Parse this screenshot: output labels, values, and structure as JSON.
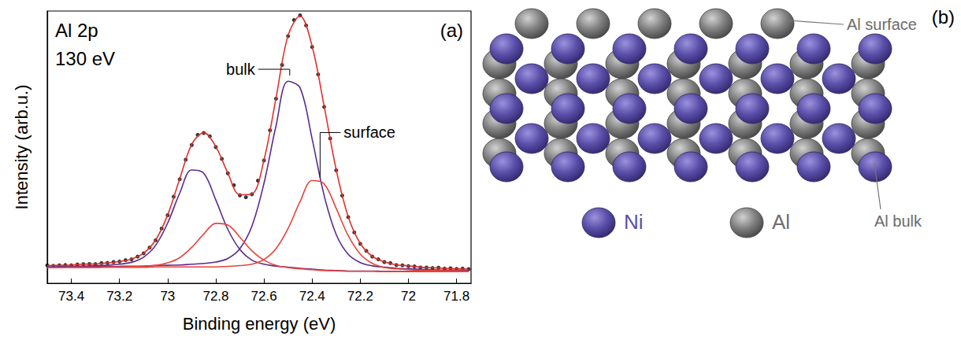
{
  "chart_data": {
    "type": "line",
    "title": "Al 2p",
    "subtitle": "130 eV",
    "panel_label": "(a)",
    "x_label": "Binding energy (eV)",
    "y_label": "Intensity (arb.u.)",
    "xlim": [
      73.5,
      71.74
    ],
    "xticks": [
      73.4,
      73.2,
      73,
      72.8,
      72.6,
      72.4,
      72.2,
      72,
      71.8
    ],
    "ylim": [
      0,
      1
    ],
    "tick_labels": "x",
    "grid": false,
    "x": [
      73.5,
      73.45,
      73.4,
      73.35,
      73.3,
      73.25,
      73.2,
      73.15,
      73.1,
      73.05,
      73,
      72.95,
      72.9,
      72.85,
      72.8,
      72.75,
      72.7,
      72.65,
      72.6,
      72.55,
      72.5,
      72.45,
      72.4,
      72.35,
      72.3,
      72.25,
      72.2,
      72.15,
      72.1,
      72.05,
      72,
      71.95,
      71.9,
      71.85,
      71.8,
      71.75
    ],
    "series": [
      {
        "type": "line",
        "color": "#5b2a8e",
        "line_style": "solid",
        "values": [
          0.06,
          0.061,
          0.062,
          0.063,
          0.064,
          0.066,
          0.07,
          0.077,
          0.096,
          0.139,
          0.221,
          0.331,
          0.416,
          0.404,
          0.306,
          0.198,
          0.124,
          0.085,
          0.07,
          0.063,
          0.059,
          0.055,
          0.052,
          0.048,
          0.047,
          0.045,
          0.045,
          0.045,
          0.044,
          0.044,
          0.044,
          0.044,
          0.043,
          0.043,
          0.043,
          0.043
        ]
      },
      {
        "type": "line",
        "color": "#5b2a8e",
        "line_style": "solid",
        "values": [
          0.06,
          0.06,
          0.06,
          0.061,
          0.061,
          0.061,
          0.062,
          0.063,
          0.063,
          0.065,
          0.066,
          0.067,
          0.07,
          0.073,
          0.078,
          0.091,
          0.127,
          0.21,
          0.367,
          0.578,
          0.742,
          0.718,
          0.53,
          0.322,
          0.179,
          0.106,
          0.076,
          0.064,
          0.059,
          0.055,
          0.053,
          0.051,
          0.05,
          0.048,
          0.048,
          0.047
        ]
      },
      {
        "type": "line",
        "color": "#e8433a",
        "line_style": "solid",
        "values": [
          0.058,
          0.058,
          0.059,
          0.059,
          0.059,
          0.06,
          0.06,
          0.061,
          0.063,
          0.066,
          0.075,
          0.094,
          0.132,
          0.181,
          0.22,
          0.214,
          0.169,
          0.119,
          0.085,
          0.066,
          0.058,
          0.053,
          0.05,
          0.047,
          0.046,
          0.044,
          0.044,
          0.044,
          0.043,
          0.043,
          0.043,
          0.043,
          0.043,
          0.043,
          0.043,
          0.043
        ]
      },
      {
        "type": "line",
        "color": "#e8433a",
        "line_style": "solid",
        "values": [
          0.058,
          0.058,
          0.058,
          0.058,
          0.058,
          0.059,
          0.059,
          0.059,
          0.059,
          0.06,
          0.06,
          0.06,
          0.06,
          0.06,
          0.06,
          0.062,
          0.065,
          0.07,
          0.087,
          0.127,
          0.201,
          0.3,
          0.377,
          0.365,
          0.275,
          0.175,
          0.107,
          0.073,
          0.058,
          0.053,
          0.05,
          0.048,
          0.047,
          0.046,
          0.046,
          0.045
        ]
      },
      {
        "type": "scatter",
        "color": "#000000",
        "marker": "circle",
        "x": [
          73.5,
          73.475,
          73.45,
          73.425,
          73.4,
          73.375,
          73.35,
          73.325,
          73.3,
          73.275,
          73.25,
          73.225,
          73.2,
          73.175,
          73.15,
          73.125,
          73.1,
          73.075,
          73.05,
          73.025,
          73,
          72.975,
          72.95,
          72.925,
          72.9,
          72.875,
          72.85,
          72.825,
          72.8,
          72.775,
          72.75,
          72.725,
          72.7,
          72.675,
          72.65,
          72.625,
          72.6,
          72.575,
          72.55,
          72.525,
          72.5,
          72.475,
          72.45,
          72.425,
          72.4,
          72.375,
          72.35,
          72.325,
          72.3,
          72.275,
          72.25,
          72.225,
          72.2,
          72.175,
          72.15,
          72.125,
          72.1,
          72.075,
          72.05,
          72.025,
          72,
          71.975,
          71.95,
          71.925,
          71.9,
          71.875,
          71.85,
          71.825,
          71.8,
          71.775,
          71.75
        ],
        "values": [
          0.066,
          0.064,
          0.066,
          0.067,
          0.066,
          0.069,
          0.07,
          0.071,
          0.07,
          0.074,
          0.075,
          0.078,
          0.08,
          0.085,
          0.088,
          0.098,
          0.11,
          0.131,
          0.158,
          0.201,
          0.25,
          0.318,
          0.382,
          0.454,
          0.508,
          0.545,
          0.552,
          0.54,
          0.5,
          0.457,
          0.404,
          0.36,
          0.323,
          0.316,
          0.327,
          0.377,
          0.451,
          0.562,
          0.678,
          0.802,
          0.908,
          0.967,
          0.984,
          0.947,
          0.868,
          0.767,
          0.648,
          0.532,
          0.415,
          0.322,
          0.243,
          0.187,
          0.145,
          0.119,
          0.098,
          0.088,
          0.078,
          0.074,
          0.067,
          0.066,
          0.063,
          0.062,
          0.058,
          0.058,
          0.056,
          0.057,
          0.054,
          0.055,
          0.053,
          0.054,
          0.052
        ]
      },
      {
        "type": "line",
        "color": "#e0312b",
        "line_style": "solid",
        "values": [
          0.065,
          0.066,
          0.067,
          0.07,
          0.071,
          0.075,
          0.08,
          0.089,
          0.11,
          0.159,
          0.251,
          0.383,
          0.51,
          0.553,
          0.502,
          0.405,
          0.325,
          0.328,
          0.453,
          0.68,
          0.91,
          0.982,
          0.87,
          0.65,
          0.417,
          0.244,
          0.146,
          0.099,
          0.079,
          0.068,
          0.064,
          0.059,
          0.057,
          0.055,
          0.053,
          0.052
        ]
      }
    ],
    "annotations": [
      {
        "text": "bulk",
        "x": 72.48,
        "y": 0.76
      },
      {
        "text": "surface",
        "x": 72.38,
        "y": 0.386
      }
    ]
  },
  "diagram": {
    "panel_label": "(b)",
    "labels": {
      "surface": "Al surface",
      "bulk": "Al bulk"
    },
    "key": [
      {
        "label": "Ni",
        "color": "#5a4fa8"
      },
      {
        "label": "Al",
        "color": "#808080"
      }
    ]
  }
}
